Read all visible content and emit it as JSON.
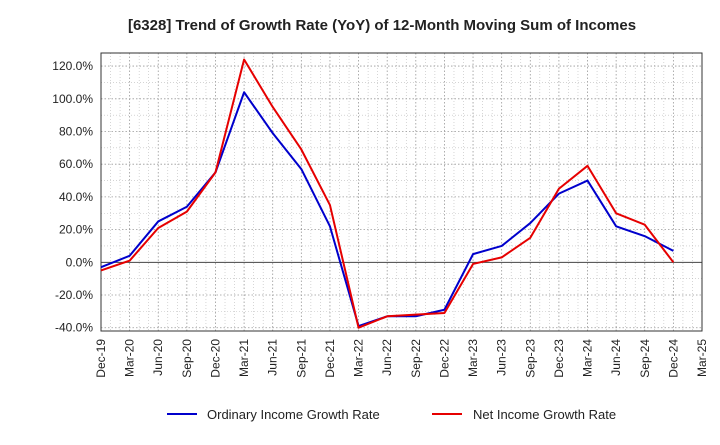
{
  "chart_data": {
    "type": "line",
    "title": "[6328]  Trend of Growth Rate (YoY) of 12-Month Moving Sum of Incomes",
    "xlabel": "",
    "ylabel": "",
    "ylim": [
      -42,
      128
    ],
    "yticks": [
      -40,
      -20,
      0,
      20,
      40,
      60,
      80,
      100,
      120
    ],
    "ytick_labels": [
      "-40.0%",
      "-20.0%",
      "0.0%",
      "20.0%",
      "40.0%",
      "60.0%",
      "80.0%",
      "100.0%",
      "120.0%"
    ],
    "xtick_labels": [
      "Dec-19",
      "Mar-20",
      "Jun-20",
      "Sep-20",
      "Dec-20",
      "Mar-21",
      "Jun-21",
      "Sep-21",
      "Dec-21",
      "Mar-22",
      "Jun-22",
      "Sep-22",
      "Dec-22",
      "Mar-23",
      "Jun-23",
      "Sep-23",
      "Dec-23",
      "Mar-24",
      "Jun-24",
      "Sep-24",
      "Dec-24",
      "Mar-25"
    ],
    "grid": true,
    "legend_position": "bottom",
    "series": [
      {
        "name": "Ordinary Income Growth Rate",
        "color": "#0000cc",
        "values": [
          -3,
          4,
          25,
          34,
          55,
          104,
          79,
          57,
          22,
          -39,
          -33,
          -33,
          -29,
          5,
          10,
          24,
          42,
          50,
          22,
          16,
          7,
          null
        ]
      },
      {
        "name": "Net Income Growth Rate",
        "color": "#e60000",
        "values": [
          -5,
          1,
          21,
          31,
          55,
          124,
          95,
          69,
          35,
          -40,
          -33,
          -32,
          -31,
          -1,
          3,
          15,
          45,
          59,
          30,
          23,
          0,
          null
        ]
      }
    ]
  }
}
